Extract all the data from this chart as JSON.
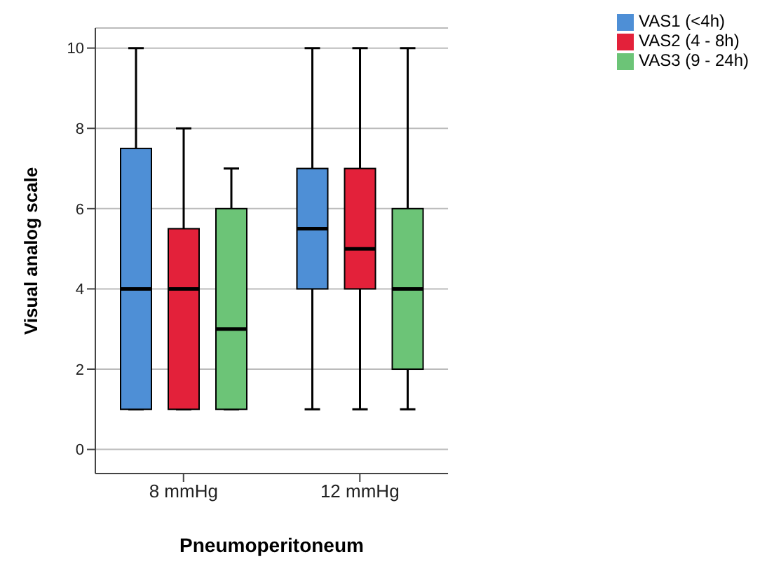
{
  "chart_data": {
    "type": "box",
    "xlabel": "Pneumoperitoneum",
    "ylabel": "Visual analog scale",
    "categories": [
      "8 mmHg",
      "12 mmHg"
    ],
    "ylim": [
      -0.6,
      10.5
    ],
    "yticks": [
      0,
      2,
      4,
      6,
      8,
      10
    ],
    "grid": "y",
    "legend": "top right",
    "series": [
      {
        "name": "VAS1 (<4h)",
        "color": "#4e8fd6",
        "boxes": [
          {
            "low": 1,
            "q1": 1,
            "median": 4,
            "q3": 7.5,
            "high": 10
          },
          {
            "low": 1,
            "q1": 4,
            "median": 5.5,
            "q3": 7,
            "high": 10
          }
        ]
      },
      {
        "name": "VAS2 (4 - 8h)",
        "color": "#e3213a",
        "boxes": [
          {
            "low": 1,
            "q1": 1,
            "median": 4,
            "q3": 5.5,
            "high": 8
          },
          {
            "low": 1,
            "q1": 4,
            "median": 5,
            "q3": 7,
            "high": 10
          }
        ]
      },
      {
        "name": "VAS3 (9 - 24h)",
        "color": "#6cc477",
        "boxes": [
          {
            "low": 1,
            "q1": 1,
            "median": 3,
            "q3": 6,
            "high": 7
          },
          {
            "low": 1,
            "q1": 2,
            "median": 4,
            "q3": 6,
            "high": 10
          }
        ]
      }
    ]
  }
}
